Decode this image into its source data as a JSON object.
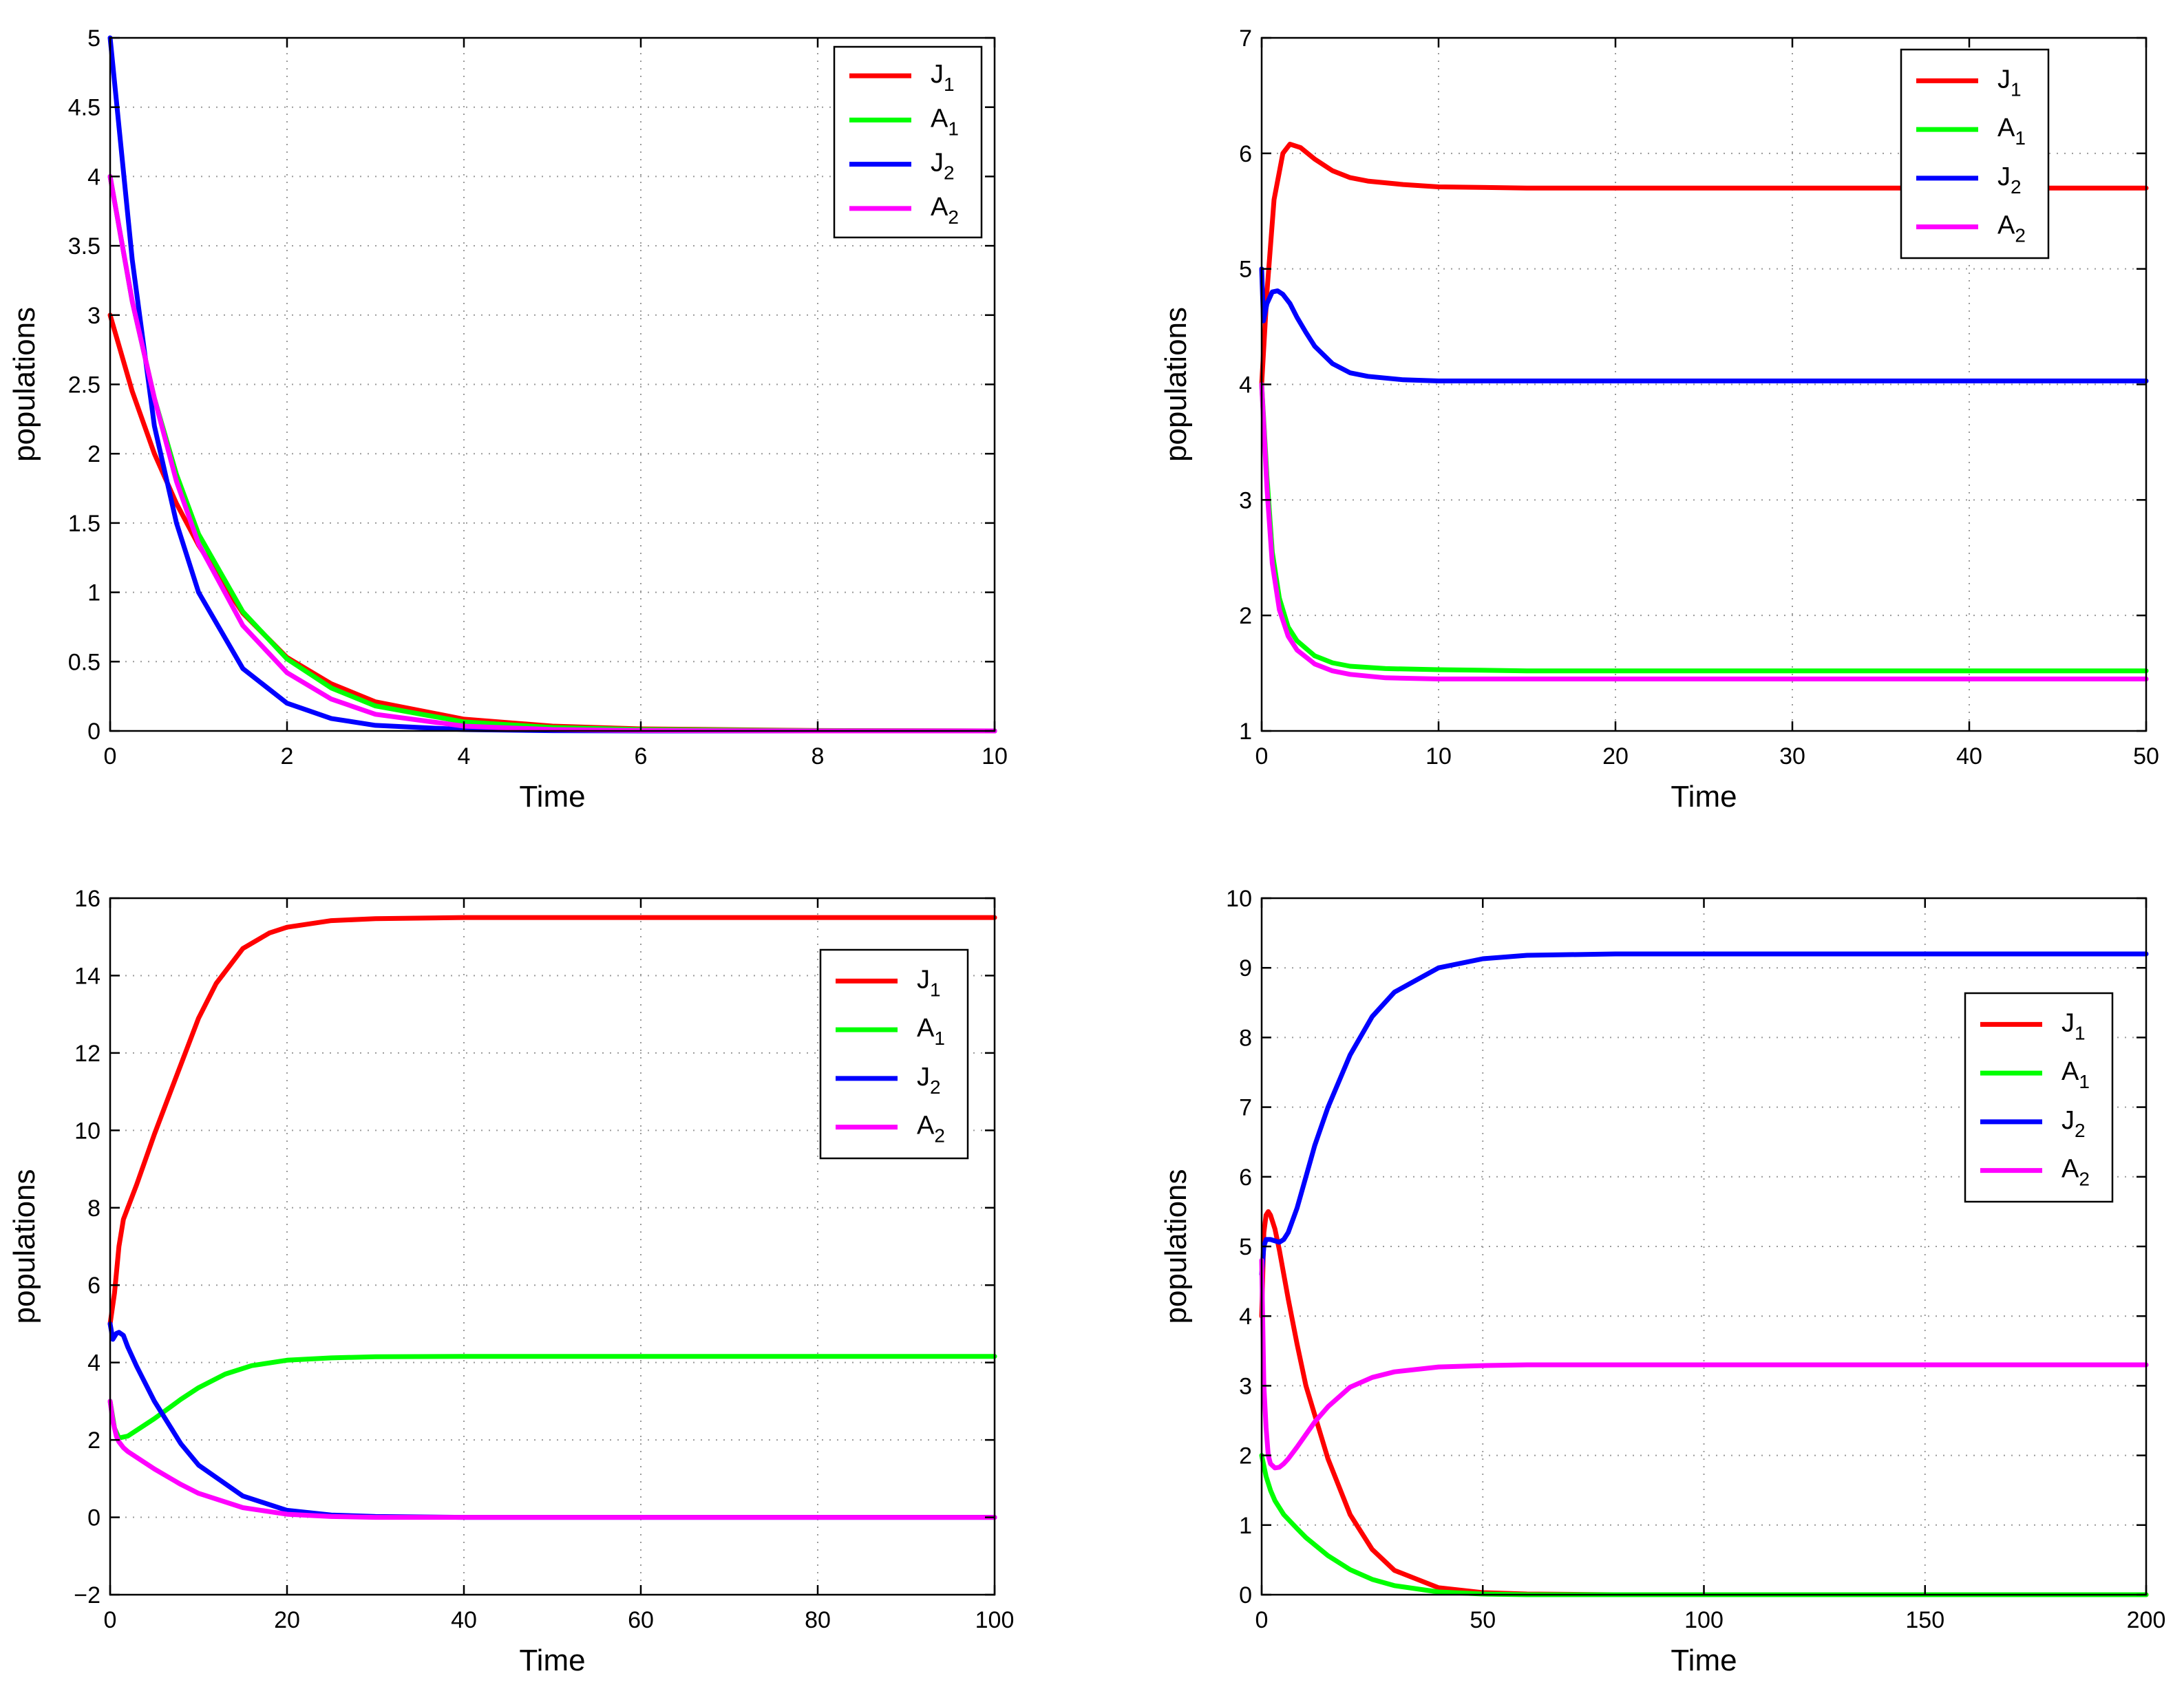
{
  "legend_labels": [
    {
      "base": "J",
      "sub": "1",
      "color": "#ff0000"
    },
    {
      "base": "A",
      "sub": "1",
      "color": "#00ff00"
    },
    {
      "base": "J",
      "sub": "2",
      "color": "#0000ff"
    },
    {
      "base": "A",
      "sub": "2",
      "color": "#ff00ff"
    }
  ],
  "chart_data": [
    {
      "type": "line",
      "panel": "top-left",
      "xlabel": "Time",
      "ylabel": "populations",
      "xlim": [
        0,
        10
      ],
      "ylim": [
        0,
        5
      ],
      "xticks": [
        0,
        2,
        4,
        6,
        8,
        10
      ],
      "yticks": [
        0,
        0.5,
        1,
        1.5,
        2,
        2.5,
        3,
        3.5,
        4,
        4.5,
        5
      ],
      "grid": true,
      "legend": "top-right",
      "series": [
        {
          "name": "J1",
          "color": "#ff0000",
          "x": [
            0,
            0.25,
            0.5,
            0.75,
            1,
            1.5,
            2,
            2.5,
            3,
            4,
            5,
            6,
            8,
            10
          ],
          "y": [
            3.0,
            2.45,
            2.0,
            1.64,
            1.34,
            0.85,
            0.53,
            0.34,
            0.21,
            0.085,
            0.035,
            0.015,
            0.003,
            0.0
          ]
        },
        {
          "name": "A1",
          "color": "#00ff00",
          "x": [
            0,
            0.25,
            0.5,
            0.75,
            1,
            1.5,
            2,
            2.5,
            3,
            4,
            5,
            6,
            8,
            10
          ],
          "y": [
            4.0,
            3.1,
            2.4,
            1.85,
            1.42,
            0.86,
            0.52,
            0.31,
            0.18,
            0.065,
            0.025,
            0.01,
            0.002,
            0.0
          ]
        },
        {
          "name": "J2",
          "color": "#0000ff",
          "x": [
            0,
            0.25,
            0.5,
            0.75,
            1,
            1.5,
            2,
            2.5,
            3,
            4,
            5,
            6,
            8,
            10
          ],
          "y": [
            5.0,
            3.4,
            2.2,
            1.5,
            1.0,
            0.45,
            0.2,
            0.09,
            0.04,
            0.01,
            0.002,
            0.0,
            0.0,
            0.0
          ]
        },
        {
          "name": "A2",
          "color": "#ff00ff",
          "x": [
            0,
            0.25,
            0.5,
            0.75,
            1,
            1.5,
            2,
            2.5,
            3,
            4,
            5,
            6,
            8,
            10
          ],
          "y": [
            4.0,
            3.1,
            2.4,
            1.8,
            1.35,
            0.76,
            0.42,
            0.23,
            0.12,
            0.035,
            0.01,
            0.003,
            0.0,
            0.0
          ]
        }
      ]
    },
    {
      "type": "line",
      "panel": "top-right",
      "xlabel": "Time",
      "ylabel": "populations",
      "xlim": [
        0,
        50
      ],
      "ylim": [
        1,
        7
      ],
      "xticks": [
        0,
        10,
        20,
        30,
        40,
        50
      ],
      "yticks": [
        1,
        2,
        3,
        4,
        5,
        6,
        7
      ],
      "grid": true,
      "legend": "top-right",
      "series": [
        {
          "name": "J1",
          "color": "#ff0000",
          "x": [
            0,
            0.3,
            0.7,
            1.2,
            1.6,
            2.2,
            3,
            4,
            5,
            6,
            8,
            10,
            15,
            20,
            30,
            40,
            50
          ],
          "y": [
            4.0,
            4.8,
            5.6,
            6.0,
            6.08,
            6.05,
            5.95,
            5.85,
            5.79,
            5.76,
            5.73,
            5.71,
            5.7,
            5.7,
            5.7,
            5.7,
            5.7
          ]
        },
        {
          "name": "A1",
          "color": "#00ff00",
          "x": [
            0,
            0.3,
            0.6,
            1,
            1.5,
            2,
            3,
            4,
            5,
            7,
            10,
            15,
            20,
            30,
            40,
            50
          ],
          "y": [
            4.0,
            3.2,
            2.55,
            2.15,
            1.9,
            1.78,
            1.65,
            1.59,
            1.56,
            1.54,
            1.53,
            1.52,
            1.52,
            1.52,
            1.52,
            1.52
          ]
        },
        {
          "name": "J2",
          "color": "#0000ff",
          "x": [
            0,
            0.1,
            0.3,
            0.6,
            0.9,
            1.2,
            1.6,
            2,
            2.5,
            3,
            4,
            5,
            6,
            8,
            10,
            15,
            20,
            30,
            40,
            50
          ],
          "y": [
            5.0,
            4.55,
            4.7,
            4.8,
            4.81,
            4.78,
            4.7,
            4.58,
            4.45,
            4.33,
            4.18,
            4.1,
            4.07,
            4.04,
            4.03,
            4.03,
            4.03,
            4.03,
            4.03,
            4.03
          ]
        },
        {
          "name": "A2",
          "color": "#ff00ff",
          "x": [
            0,
            0.3,
            0.6,
            1,
            1.5,
            2,
            3,
            4,
            5,
            7,
            10,
            15,
            20,
            30,
            40,
            50
          ],
          "y": [
            4.0,
            3.1,
            2.45,
            2.05,
            1.82,
            1.7,
            1.58,
            1.52,
            1.49,
            1.46,
            1.45,
            1.45,
            1.45,
            1.45,
            1.45,
            1.45
          ]
        }
      ]
    },
    {
      "type": "line",
      "panel": "bottom-left",
      "xlabel": "Time",
      "ylabel": "populations",
      "xlim": [
        0,
        100
      ],
      "ylim": [
        -2,
        16
      ],
      "xticks": [
        0,
        20,
        40,
        60,
        80,
        100
      ],
      "yticks": [
        -2,
        0,
        2,
        4,
        6,
        8,
        10,
        12,
        14,
        16
      ],
      "grid": true,
      "legend": "upper-right",
      "series": [
        {
          "name": "J1",
          "color": "#ff0000",
          "x": [
            0,
            0.5,
            1,
            1.5,
            2,
            3,
            5,
            7,
            10,
            12,
            15,
            18,
            20,
            25,
            30,
            40,
            60,
            80,
            100
          ],
          "y": [
            5.0,
            5.8,
            7.0,
            7.7,
            8.0,
            8.6,
            9.9,
            11.1,
            12.9,
            13.8,
            14.7,
            15.1,
            15.25,
            15.42,
            15.47,
            15.5,
            15.5,
            15.5,
            15.5
          ]
        },
        {
          "name": "A1",
          "color": "#00ff00",
          "x": [
            0,
            0.5,
            1,
            2,
            3,
            5,
            8,
            10,
            13,
            16,
            20,
            25,
            30,
            40,
            60,
            80,
            100
          ],
          "y": [
            3.0,
            2.3,
            2.05,
            2.1,
            2.25,
            2.55,
            3.05,
            3.35,
            3.7,
            3.92,
            4.06,
            4.12,
            4.15,
            4.16,
            4.16,
            4.16,
            4.16
          ]
        },
        {
          "name": "J2",
          "color": "#0000ff",
          "x": [
            0,
            0.3,
            0.7,
            1,
            1.5,
            2,
            3,
            5,
            8,
            10,
            15,
            20,
            25,
            30,
            40,
            60,
            80,
            100
          ],
          "y": [
            5.0,
            4.6,
            4.75,
            4.78,
            4.7,
            4.4,
            3.9,
            3.0,
            1.9,
            1.35,
            0.55,
            0.18,
            0.06,
            0.02,
            0.0,
            0.0,
            0.0,
            0.0
          ]
        },
        {
          "name": "A2",
          "color": "#ff00ff",
          "x": [
            0,
            0.3,
            0.7,
            1,
            1.5,
            2,
            3,
            5,
            8,
            10,
            15,
            20,
            25,
            30,
            40,
            60,
            80,
            100
          ],
          "y": [
            3.0,
            2.5,
            2.1,
            1.95,
            1.8,
            1.7,
            1.55,
            1.25,
            0.85,
            0.62,
            0.25,
            0.08,
            0.02,
            0.0,
            0.0,
            0.0,
            0.0,
            0.0
          ]
        }
      ]
    },
    {
      "type": "line",
      "panel": "bottom-right",
      "xlabel": "Time",
      "ylabel": "populations",
      "xlim": [
        0,
        200
      ],
      "ylim": [
        0,
        10
      ],
      "xticks": [
        0,
        50,
        100,
        150,
        200
      ],
      "yticks": [
        0,
        1,
        2,
        3,
        4,
        5,
        6,
        7,
        8,
        9,
        10
      ],
      "grid": true,
      "legend": "right",
      "series": [
        {
          "name": "J1",
          "color": "#ff0000",
          "x": [
            0,
            0.5,
            1,
            1.5,
            2,
            3,
            4,
            6,
            8,
            10,
            15,
            20,
            25,
            30,
            40,
            50,
            60,
            80,
            100,
            150,
            200
          ],
          "y": [
            4.0,
            5.2,
            5.45,
            5.5,
            5.45,
            5.25,
            4.95,
            4.25,
            3.6,
            3.0,
            1.95,
            1.15,
            0.65,
            0.35,
            0.1,
            0.03,
            0.01,
            0.0,
            0.0,
            0.0,
            0.0
          ]
        },
        {
          "name": "A1",
          "color": "#00ff00",
          "x": [
            0,
            0.5,
            1,
            2,
            3,
            5,
            8,
            10,
            15,
            20,
            25,
            30,
            40,
            50,
            60,
            80,
            100,
            150,
            200
          ],
          "y": [
            2.0,
            1.85,
            1.7,
            1.5,
            1.35,
            1.15,
            0.95,
            0.82,
            0.56,
            0.36,
            0.22,
            0.13,
            0.04,
            0.01,
            0.0,
            0.0,
            0.0,
            0.0,
            0.0
          ]
        },
        {
          "name": "J2",
          "color": "#0000ff",
          "x": [
            0,
            0.5,
            1,
            2,
            3,
            4,
            5,
            6,
            8,
            10,
            12,
            15,
            20,
            25,
            30,
            40,
            50,
            60,
            80,
            100,
            150,
            200
          ],
          "y": [
            4.6,
            5.0,
            5.1,
            5.1,
            5.08,
            5.06,
            5.1,
            5.2,
            5.55,
            6.0,
            6.45,
            7.0,
            7.75,
            8.3,
            8.65,
            9.0,
            9.13,
            9.18,
            9.2,
            9.2,
            9.2,
            9.2
          ]
        },
        {
          "name": "A2",
          "color": "#ff00ff",
          "x": [
            0,
            0.5,
            1,
            1.5,
            2,
            3,
            4,
            5,
            6,
            8,
            10,
            12,
            15,
            20,
            25,
            30,
            40,
            50,
            60,
            80,
            100,
            150,
            200
          ],
          "y": [
            4.8,
            3.0,
            2.4,
            2.0,
            1.88,
            1.82,
            1.83,
            1.88,
            1.95,
            2.12,
            2.3,
            2.48,
            2.7,
            2.98,
            3.12,
            3.2,
            3.27,
            3.29,
            3.3,
            3.3,
            3.3,
            3.3,
            3.3
          ]
        }
      ]
    }
  ]
}
